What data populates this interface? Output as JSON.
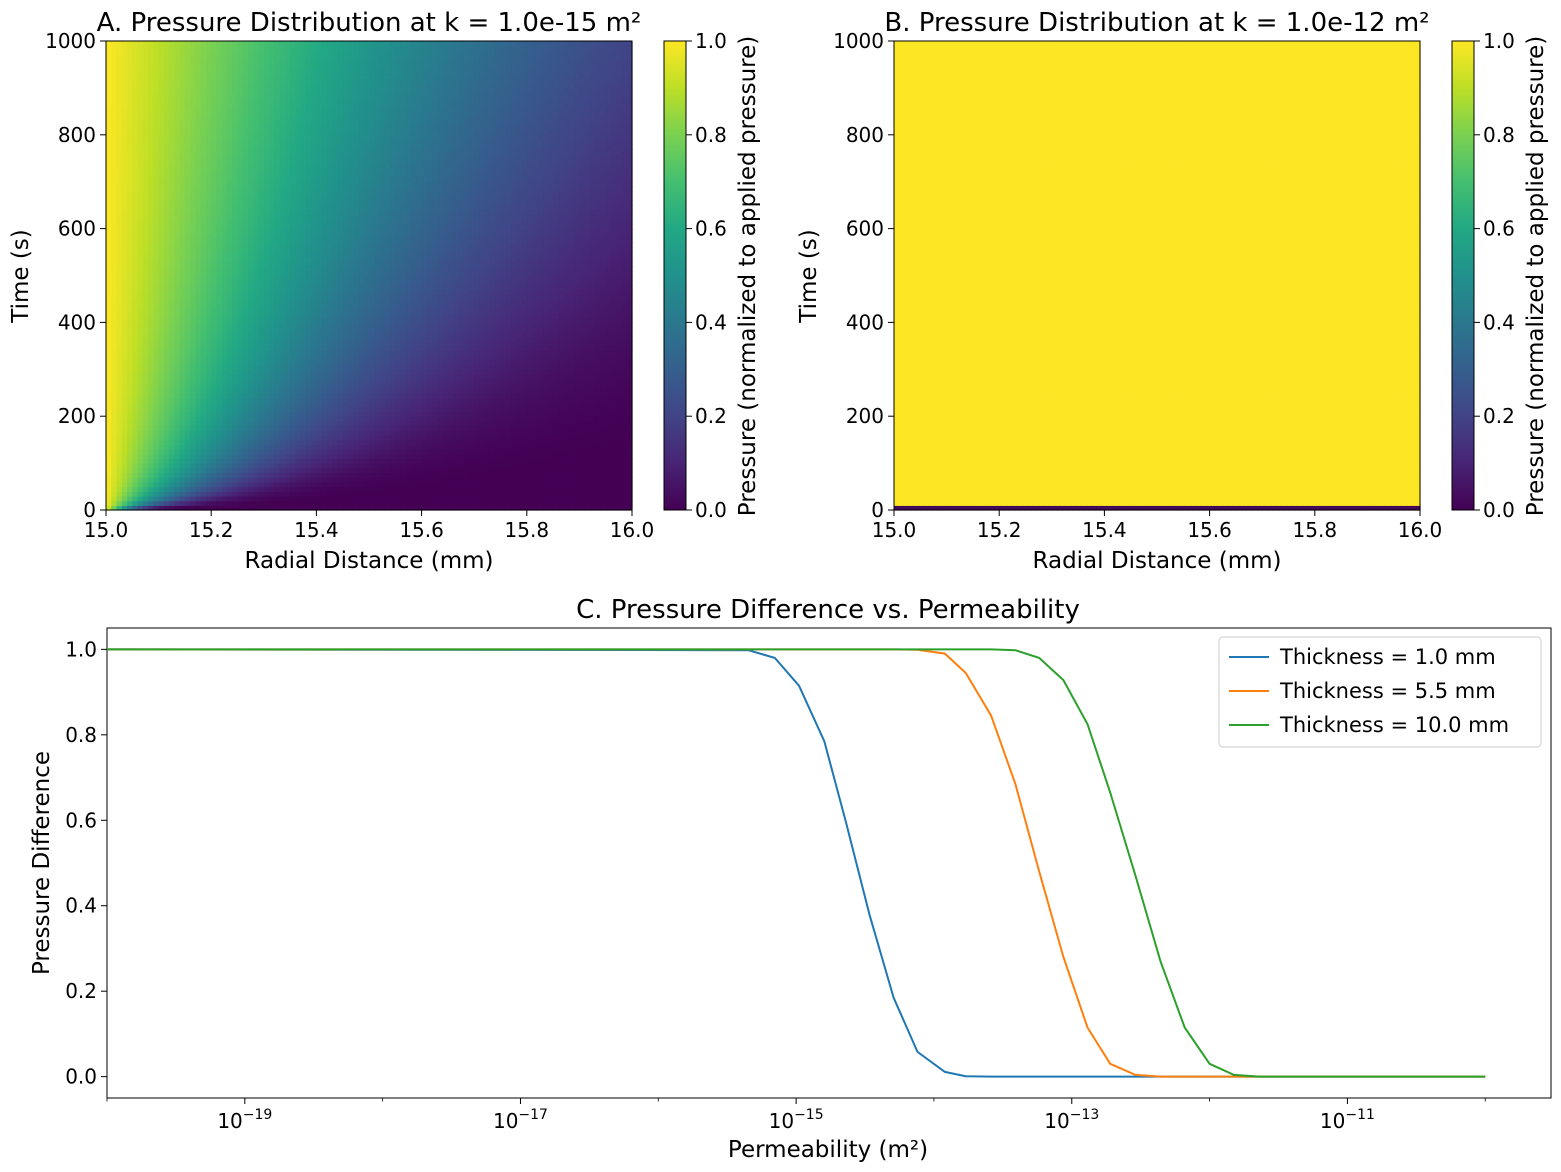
{
  "chart_data": [
    {
      "type": "heatmap",
      "title": "A. Pressure Distribution at k = 1.0e-15 m²",
      "xlabel": "Radial Distance (mm)",
      "ylabel": "Time (s)",
      "xlim": [
        15.0,
        16.0
      ],
      "ylim": [
        0,
        1000
      ],
      "xticks": [
        "15.0",
        "15.2",
        "15.4",
        "15.6",
        "15.8",
        "16.0"
      ],
      "yticks": [
        "0",
        "200",
        "400",
        "600",
        "800",
        "1000"
      ],
      "colorbar": {
        "label": "Pressure (normalized to applied pressure)",
        "range": [
          0.0,
          1.0
        ],
        "ticks": [
          "0.0",
          "0.2",
          "0.4",
          "0.6",
          "0.8",
          "1.0"
        ],
        "colormap": "viridis"
      },
      "profile": "diffusion",
      "permeability": 1e-15
    },
    {
      "type": "heatmap",
      "title": "B. Pressure Distribution at k = 1.0e-12 m²",
      "xlabel": "Radial Distance (mm)",
      "ylabel": "Time (s)",
      "xlim": [
        15.0,
        16.0
      ],
      "ylim": [
        0,
        1000
      ],
      "xticks": [
        "15.0",
        "15.2",
        "15.4",
        "15.6",
        "15.8",
        "16.0"
      ],
      "yticks": [
        "0",
        "200",
        "400",
        "600",
        "800",
        "1000"
      ],
      "colorbar": {
        "label": "Pressure (normalized to applied pressure)",
        "range": [
          0.0,
          1.0
        ],
        "ticks": [
          "0.0",
          "0.2",
          "0.4",
          "0.6",
          "0.8",
          "1.0"
        ],
        "colormap": "viridis"
      },
      "profile": "saturated",
      "permeability": 1e-12
    },
    {
      "type": "line",
      "title": "C. Pressure Difference vs. Permeability",
      "xlabel": "Permeability (m²)",
      "ylabel": "Pressure Difference",
      "xscale": "log",
      "xlim": [
        1e-20,
        3e-10
      ],
      "ylim": [
        -0.05,
        1.05
      ],
      "xticks": [
        {
          "value": 1e-19,
          "base": "10",
          "exp": "−19"
        },
        {
          "value": 1e-17,
          "base": "10",
          "exp": "−17"
        },
        {
          "value": 1e-15,
          "base": "10",
          "exp": "−15"
        },
        {
          "value": 1e-13,
          "base": "10",
          "exp": "−13"
        },
        {
          "value": 1e-11,
          "base": "10",
          "exp": "−11"
        }
      ],
      "yticks": [
        "0.0",
        "0.2",
        "0.4",
        "0.6",
        "0.8",
        "1.0"
      ],
      "legend": "upper right",
      "x": [
        1e-20,
        4.5e-16,
        7e-16,
        1.05e-15,
        1.6e-15,
        2.3e-15,
        3.4e-15,
        5.1e-15,
        7.6e-15,
        1.2e-14,
        1.7e-14,
        2.6e-14,
        3.9e-14,
        5.8e-14,
        8.7e-14,
        1.3e-13,
        1.9e-13,
        2.9e-13,
        4.4e-13,
        6.6e-13,
        1e-12,
        1.5e-12,
        2.3e-12,
        3.4e-12,
        5.1e-12,
        1e-10
      ],
      "series": [
        {
          "name": "Thickness = 1.0 mm",
          "color": "#1f77b4",
          "values": [
            1.0,
            0.998,
            0.98,
            0.915,
            0.785,
            0.595,
            0.38,
            0.185,
            0.058,
            0.011,
            0.001,
            0.0,
            0.0,
            0.0,
            0.0,
            0.0,
            0.0,
            0.0,
            0.0,
            0.0,
            0.0,
            0.0,
            0.0,
            0.0,
            0.0,
            0.0
          ]
        },
        {
          "name": "Thickness = 5.5 mm",
          "color": "#ff7f0e",
          "values": [
            1.0,
            1.0,
            1.0,
            1.0,
            1.0,
            1.0,
            1.0,
            1.0,
            0.999,
            0.99,
            0.945,
            0.845,
            0.685,
            0.48,
            0.28,
            0.115,
            0.03,
            0.004,
            0.0,
            0.0,
            0.0,
            0.0,
            0.0,
            0.0,
            0.0,
            0.0
          ]
        },
        {
          "name": "Thickness = 10.0 mm",
          "color": "#2ca02c",
          "values": [
            1.0,
            1.0,
            1.0,
            1.0,
            1.0,
            1.0,
            1.0,
            1.0,
            1.0,
            1.0,
            1.0,
            1.0,
            0.998,
            0.98,
            0.928,
            0.825,
            0.665,
            0.47,
            0.27,
            0.115,
            0.03,
            0.004,
            0.0,
            0.0,
            0.0,
            0.0
          ]
        }
      ]
    }
  ]
}
